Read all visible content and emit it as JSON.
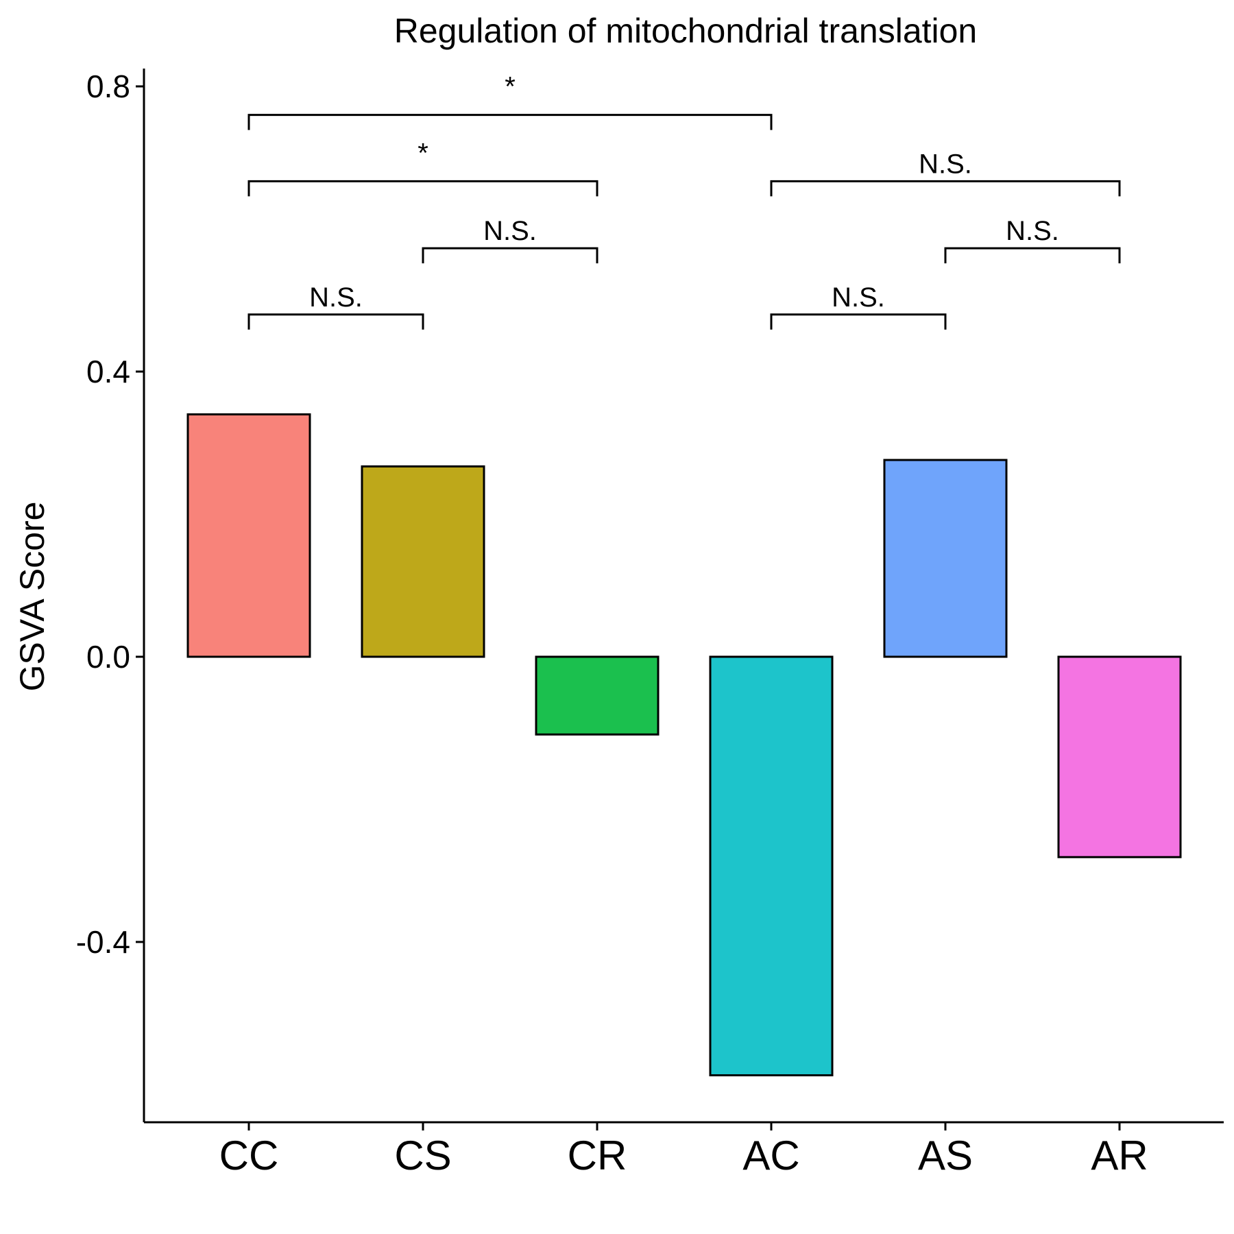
{
  "chart_data": {
    "type": "bar",
    "title": "Regulation of mitochondrial translation",
    "xlabel": "",
    "ylabel": "GSVA Score",
    "categories": [
      "CC",
      "CS",
      "CR",
      "AC",
      "AS",
      "AR"
    ],
    "values": [
      0.34,
      0.267,
      -0.109,
      -0.587,
      0.276,
      -0.281
    ],
    "colors": [
      "#F8837A",
      "#BEA81A",
      "#1BC04E",
      "#1DC4CB",
      "#6FA4FB",
      "#F474E2"
    ],
    "ylim": [
      -0.645,
      0.82
    ],
    "yticks": [
      -0.4,
      0.0,
      0.4,
      0.8
    ],
    "ytick_labels": [
      "-0.4",
      "0.0",
      "0.4",
      "0.8"
    ],
    "grid": false,
    "legend": "none",
    "comparisons": [
      {
        "from": "CC",
        "to": "CS",
        "label": "N.S.",
        "y": 0.48
      },
      {
        "from": "CS",
        "to": "CR",
        "label": "N.S.",
        "y": 0.573
      },
      {
        "from": "CC",
        "to": "CR",
        "label": "*",
        "y": 0.667
      },
      {
        "from": "CC",
        "to": "AC",
        "label": "*",
        "y": 0.76
      },
      {
        "from": "AC",
        "to": "AS",
        "label": "N.S.",
        "y": 0.48
      },
      {
        "from": "AS",
        "to": "AR",
        "label": "N.S.",
        "y": 0.573
      },
      {
        "from": "AC",
        "to": "AR",
        "label": "N.S.",
        "y": 0.667
      }
    ]
  }
}
